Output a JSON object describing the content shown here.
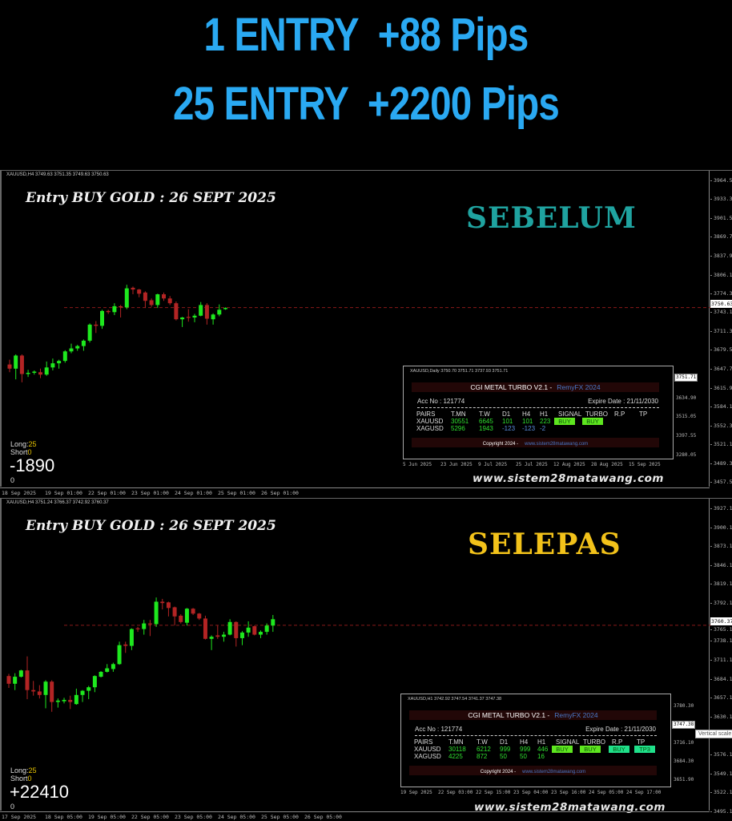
{
  "headline": {
    "line1": "1 ENTRY  +88 Pips",
    "line2": "25 ENTRY  +2200 Pips",
    "color": "#2aa9f2"
  },
  "charts": [
    {
      "info": "XAUUSD,H4  3749.63 3751.35 3749.63 3750.63",
      "title": "Entry BUY GOLD : 26 SEPT 2025",
      "badge": "SEBELUM",
      "badge_color": "#1fa3a0",
      "long_label": "Long:",
      "long_value": "25",
      "short_label": "Short",
      "short_value": "0",
      "pnl": "-1890",
      "zero": "0",
      "website": "www.sistem28matawang.com",
      "current_price": "3750.63",
      "current_value": 3750.63,
      "y_ticks": [
        "3964.50",
        "3933.30",
        "3901.50",
        "3869.70",
        "3837.90",
        "3806.10",
        "3774.30",
        "3743.10",
        "3711.30",
        "3679.50",
        "3647.70",
        "3615.90",
        "3584.10",
        "3552.30",
        "3521.10",
        "3489.30",
        "3457.50"
      ],
      "x_ticks": [
        "18 Sep 2025",
        "19 Sep 01:00",
        "22 Sep 01:00",
        "23 Sep 01:00",
        "24 Sep 01:00",
        "25 Sep 01:00",
        "26 Sep 01:00"
      ],
      "candles_ohlc": [
        [
          3655,
          3663,
          3642,
          3648
        ],
        [
          3648,
          3672,
          3630,
          3670
        ],
        [
          3670,
          3672,
          3625,
          3639
        ],
        [
          3639,
          3646,
          3634,
          3641
        ],
        [
          3641,
          3645,
          3638,
          3643
        ],
        [
          3642,
          3648,
          3632,
          3638
        ],
        [
          3638,
          3660,
          3636,
          3650
        ],
        [
          3650,
          3665,
          3645,
          3657
        ],
        [
          3657,
          3663,
          3648,
          3661
        ],
        [
          3661,
          3679,
          3658,
          3677
        ],
        [
          3677,
          3690,
          3674,
          3682
        ],
        [
          3682,
          3688,
          3678,
          3686
        ],
        [
          3686,
          3697,
          3678,
          3695
        ],
        [
          3695,
          3724,
          3692,
          3722
        ],
        [
          3722,
          3728,
          3708,
          3720
        ],
        [
          3720,
          3747,
          3715,
          3745
        ],
        [
          3745,
          3747,
          3740,
          3743
        ],
        [
          3743,
          3758,
          3738,
          3753
        ],
        [
          3753,
          3755,
          3734,
          3751
        ],
        [
          3751,
          3789,
          3748,
          3783
        ],
        [
          3784,
          3786,
          3773,
          3781
        ],
        [
          3781,
          3782,
          3768,
          3774
        ],
        [
          3776,
          3778,
          3750,
          3762
        ],
        [
          3763,
          3766,
          3752,
          3755
        ],
        [
          3755,
          3774,
          3750,
          3773
        ],
        [
          3773,
          3776,
          3762,
          3766
        ],
        [
          3766,
          3770,
          3755,
          3758
        ],
        [
          3758,
          3761,
          3729,
          3731
        ],
        [
          3731,
          3735,
          3718,
          3734
        ],
        [
          3735,
          3748,
          3727,
          3734
        ],
        [
          3734,
          3740,
          3726,
          3737
        ],
        [
          3737,
          3760,
          3736,
          3755
        ],
        [
          3755,
          3758,
          3722,
          3732
        ],
        [
          3731,
          3741,
          3722,
          3739
        ],
        [
          3739,
          3756,
          3736,
          3747
        ],
        [
          3748,
          3751,
          3747,
          3750
        ]
      ],
      "panel": {
        "info": "XAUUSD,Daily  3750.70 3751.71 3737.93 3751.71",
        "title": "CGI METAL TURBO V2.1  -",
        "brand": "RemyFX 2024",
        "acc": "Acc No : 121774",
        "expire": "Expire Date : 21/11/2030",
        "headers": [
          "PAIRS",
          "T.MN",
          "T.W",
          "D1",
          "H4",
          "H1",
          "SIGNAL",
          "TURBO",
          "R.P",
          "TP"
        ],
        "rows": [
          {
            "pair": "XAUUSD",
            "tmn": "30551",
            "tw": "6645",
            "d1": "101",
            "h4": "101",
            "h1": "223"
          },
          {
            "pair": "XAGUSD",
            "tmn": "5296",
            "tw": "1943",
            "d1": "-123",
            "h4": "-123",
            "h1": "-2"
          }
        ],
        "signal": "BUY",
        "turbo": "BUY",
        "rp": "",
        "tp": "",
        "copyright": "Copyright 2024 -",
        "copy_url": "www.sistem28matawang.com",
        "axis": [
          "3634.90",
          "3515.05",
          "3397.55",
          "3280.05"
        ],
        "axis_current": "3751.71",
        "dates": [
          "5 Jun 2025",
          "23 Jun 2025",
          "9 Jul 2025",
          "25 Jul 2025",
          "12 Aug 2025",
          "28 Aug 2025",
          "15 Sep 2025"
        ]
      }
    },
    {
      "info": "XAUUSD,H4  3751.24 3766.37 3742.92 3760.37",
      "title": "Entry BUY GOLD : 26 SEPT 2025",
      "badge": "SELEPAS",
      "badge_color": "#f2c21a",
      "long_label": "Long:",
      "long_value": "25",
      "short_label": "Short",
      "short_value": "0",
      "pnl": "+22410",
      "zero": "0",
      "website": "www.sistem28matawang.com",
      "current_price": "3760.37",
      "current_value": 3760.37,
      "tooltip": "Vertical scale",
      "y_ticks": [
        "3927.10",
        "3900.10",
        "3873.10",
        "3846.10",
        "3819.10",
        "3792.10",
        "3765.10",
        "3738.10",
        "3711.10",
        "3684.10",
        "3657.10",
        "3630.10",
        "3576.10",
        "3549.10",
        "3522.10",
        "3495.10"
      ],
      "x_ticks": [
        "17 Sep 2025",
        "18 Sep 05:00",
        "19 Sep 05:00",
        "22 Sep 05:00",
        "23 Sep 05:00",
        "24 Sep 05:00",
        "25 Sep 05:00",
        "26 Sep 05:00"
      ],
      "candles_ohlc": [
        [
          3688,
          3691,
          3671,
          3677
        ],
        [
          3677,
          3692,
          3668,
          3687
        ],
        [
          3687,
          3697,
          3686,
          3696
        ],
        [
          3696,
          3716,
          3655,
          3668
        ],
        [
          3668,
          3681,
          3660,
          3666
        ],
        [
          3666,
          3675,
          3656,
          3661
        ],
        [
          3661,
          3682,
          3642,
          3680
        ],
        [
          3680,
          3682,
          3637,
          3651
        ],
        [
          3651,
          3656,
          3643,
          3653
        ],
        [
          3652,
          3657,
          3649,
          3654
        ],
        [
          3654,
          3660,
          3641,
          3651
        ],
        [
          3648,
          3670,
          3647,
          3661
        ],
        [
          3661,
          3668,
          3651,
          3667
        ],
        [
          3667,
          3674,
          3655,
          3672
        ],
        [
          3672,
          3689,
          3665,
          3688
        ],
        [
          3687,
          3695,
          3686,
          3694
        ],
        [
          3694,
          3705,
          3693,
          3699
        ],
        [
          3698,
          3707,
          3694,
          3705
        ],
        [
          3705,
          3737,
          3704,
          3732
        ],
        [
          3733,
          3737,
          3721,
          3731
        ],
        [
          3731,
          3756,
          3725,
          3755
        ],
        [
          3756,
          3758,
          3751,
          3755
        ],
        [
          3755,
          3768,
          3747,
          3763
        ],
        [
          3763,
          3768,
          3745,
          3762
        ],
        [
          3762,
          3800,
          3758,
          3794
        ],
        [
          3794,
          3798,
          3783,
          3792
        ],
        [
          3793,
          3794,
          3773,
          3785
        ],
        [
          3786,
          3787,
          3760,
          3773
        ],
        [
          3774,
          3776,
          3763,
          3765
        ],
        [
          3764,
          3785,
          3760,
          3784
        ],
        [
          3784,
          3785,
          3775,
          3777
        ],
        [
          3777,
          3778,
          3768,
          3770
        ],
        [
          3770,
          3774,
          3740,
          3741
        ],
        [
          3741,
          3746,
          3725,
          3744
        ],
        [
          3746,
          3760,
          3741,
          3744
        ],
        [
          3744,
          3751,
          3737,
          3747
        ],
        [
          3747,
          3769,
          3746,
          3765
        ],
        [
          3765,
          3766,
          3730,
          3742
        ],
        [
          3742,
          3752,
          3732,
          3750
        ],
        [
          3750,
          3766,
          3744,
          3757
        ],
        [
          3759,
          3760,
          3746,
          3747
        ],
        [
          3747,
          3753,
          3742,
          3751
        ],
        [
          3751,
          3763,
          3747,
          3760
        ],
        [
          3760,
          3775,
          3751,
          3769
        ]
      ],
      "panel": {
        "info": "XAUUSD,H1  3742.92 3747.54 3741.37 3747.38",
        "title": "CGI METAL TURBO V2.1  -",
        "brand": "RemyFX 2024",
        "acc": "Acc No : 121774",
        "expire": "Expire Date : 21/11/2030",
        "headers": [
          "PAIRS",
          "T.MN",
          "T.W",
          "D1",
          "H4",
          "H1",
          "SIGNAL",
          "TURBO",
          "R.P",
          "TP"
        ],
        "rows": [
          {
            "pair": "XAUUSD",
            "tmn": "30118",
            "tw": "6212",
            "d1": "999",
            "h4": "999",
            "h1": "446"
          },
          {
            "pair": "XAGUSD",
            "tmn": "4225",
            "tw": "872",
            "d1": "50",
            "h4": "50",
            "h1": "16"
          }
        ],
        "signal": "BUY",
        "turbo": "BUY",
        "rp": "BUY",
        "tp": "TP3",
        "copyright": "Copyright 2024 -",
        "copy_url": "www.sistem28matawang.com",
        "axis": [
          "3780.30",
          "3716.10",
          "3684.30",
          "3651.90"
        ],
        "axis_current": "3747.38",
        "dates": [
          "19 Sep 2025",
          "22 Sep 03:00",
          "22 Sep 15:00",
          "23 Sep 04:00",
          "23 Sep 16:00",
          "24 Sep 05:00",
          "24 Sep 17:00"
        ]
      }
    }
  ],
  "colors": {
    "bull": "#1ee81e",
    "bear": "#b32424",
    "price_line": "#8a1a1a",
    "btn_lime": "#5ee61f",
    "btn_teal": "#1fe08a"
  }
}
